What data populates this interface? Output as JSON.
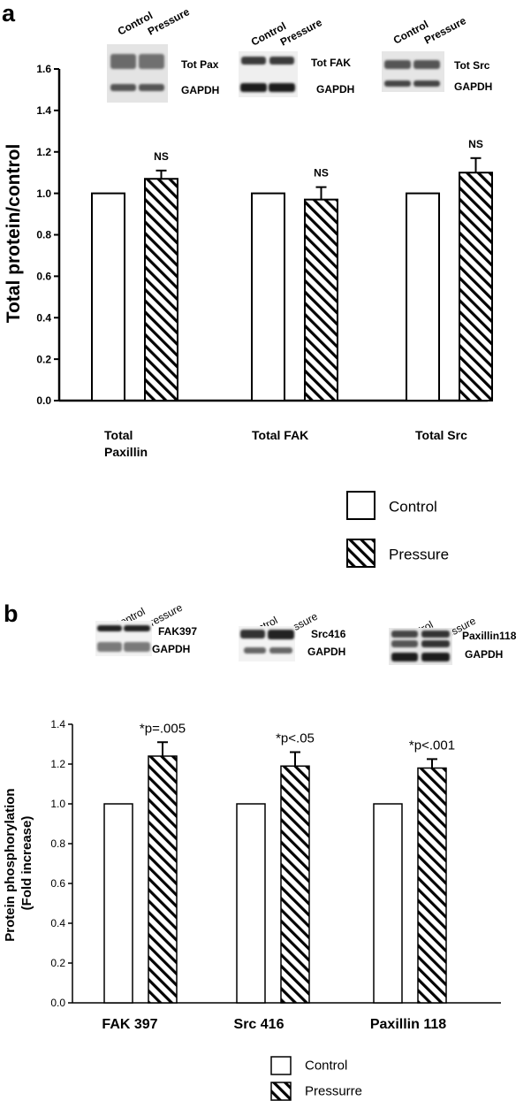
{
  "chart_data": [
    {
      "panel": "a",
      "type": "bar",
      "ylabel": "Total protein/control",
      "ylim": [
        0,
        1.6
      ],
      "yticks": [
        "0.0",
        "0.2",
        "0.4",
        "0.6",
        "0.8",
        "1.0",
        "1.2",
        "1.4",
        "1.6"
      ],
      "categories": [
        "Total Paxillin",
        "Total FAK",
        "Total Src"
      ],
      "category_lines": [
        [
          "Total",
          "Paxillin"
        ],
        [
          "Total FAK"
        ],
        [
          "Total Src"
        ]
      ],
      "series": [
        {
          "name": "Control",
          "values": [
            1.0,
            1.0,
            1.0
          ],
          "errors": [
            0,
            0,
            0
          ]
        },
        {
          "name": "Pressure",
          "values": [
            1.07,
            0.97,
            1.1
          ],
          "errors": [
            0.04,
            0.06,
            0.07
          ]
        }
      ],
      "annotations": [
        "NS",
        "NS",
        "NS"
      ],
      "legend": [
        "Control",
        "Pressure"
      ],
      "blots": [
        {
          "lanes": [
            "Control",
            "Pressure"
          ],
          "labels": [
            "Tot Pax",
            "GAPDH"
          ]
        },
        {
          "lanes": [
            "Control",
            "Pressure"
          ],
          "labels": [
            "Tot FAK",
            "GAPDH"
          ]
        },
        {
          "lanes": [
            "Control",
            "Pressure"
          ],
          "labels": [
            "Tot Src",
            "GAPDH"
          ]
        }
      ]
    },
    {
      "panel": "b",
      "type": "bar",
      "ylabel": [
        "Protein phosphorylation",
        "(Fold increase)"
      ],
      "ylim": [
        0,
        1.4
      ],
      "yticks": [
        "0.0",
        "0.2",
        "0.4",
        "0.6",
        "0.8",
        "1.0",
        "1.2",
        "1.4"
      ],
      "categories": [
        "FAK 397",
        "Src 416",
        "Paxillin 118"
      ],
      "series": [
        {
          "name": "Control",
          "values": [
            1.0,
            1.0,
            1.0
          ],
          "errors": [
            0,
            0,
            0
          ]
        },
        {
          "name": "Pressurre",
          "values": [
            1.24,
            1.19,
            1.18
          ],
          "errors": [
            0.07,
            0.07,
            0.045
          ]
        }
      ],
      "annotations": [
        "*p=.005",
        "*p<.05",
        "*p<.001"
      ],
      "legend": [
        "Control",
        "Pressurre"
      ],
      "blots": [
        {
          "lanes": [
            "Control",
            "Pressure"
          ],
          "labels": [
            "FAK397",
            "GAPDH"
          ]
        },
        {
          "lanes": [
            "Control",
            "Pressure"
          ],
          "labels": [
            "Src416",
            "GAPDH"
          ]
        },
        {
          "lanes": [
            "Control",
            "Pressure"
          ],
          "labels": [
            "Paxillin118",
            "GAPDH"
          ]
        }
      ]
    }
  ]
}
